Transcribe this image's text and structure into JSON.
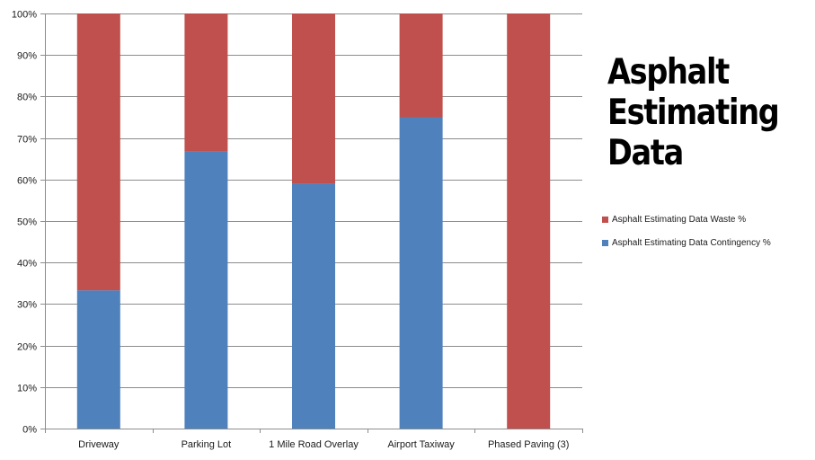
{
  "chart_data": {
    "type": "bar",
    "stacked": true,
    "percent_stacked": true,
    "title_lines": [
      "Asphalt",
      "Estimating",
      "Data"
    ],
    "categories": [
      "Driveway",
      "Parking Lot",
      "1 Mile Road Overlay",
      "Airport Taxiway",
      "Phased Paving (3)"
    ],
    "series": [
      {
        "name": "Asphalt Estimating Data Contingency %",
        "color": "#4f81bd",
        "values": [
          33.3,
          66.7,
          59,
          75,
          0
        ]
      },
      {
        "name": "Asphalt Estimating Data Waste %",
        "color": "#c0504d",
        "values": [
          66.7,
          33.3,
          41,
          25,
          100
        ]
      }
    ],
    "ylim": [
      0,
      100
    ],
    "y_ticks": [
      "0%",
      "10%",
      "20%",
      "30%",
      "40%",
      "50%",
      "60%",
      "70%",
      "80%",
      "90%",
      "100%"
    ],
    "grid": true,
    "legend_order": [
      1,
      0
    ],
    "legend_position": "right"
  }
}
